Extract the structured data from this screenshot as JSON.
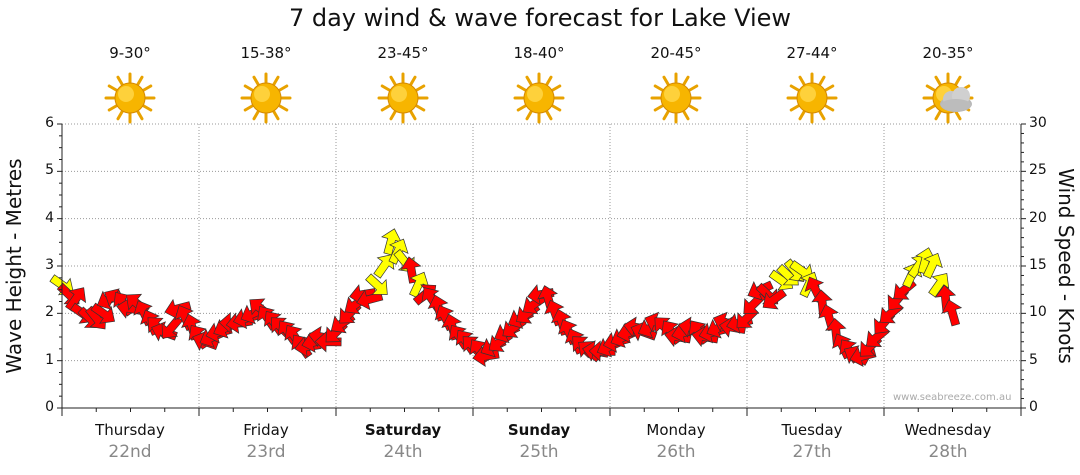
{
  "title": "7 day wind & wave forecast for Lake View",
  "credit": "www.seabreeze.com.au",
  "days": [
    {
      "name": "Thursday",
      "date": "22nd",
      "temp": "9-30°",
      "icon": "sun-icon",
      "bold": false
    },
    {
      "name": "Friday",
      "date": "23rd",
      "temp": "15-38°",
      "icon": "sun-icon",
      "bold": false
    },
    {
      "name": "Saturday",
      "date": "24th",
      "temp": "23-45°",
      "icon": "sun-icon",
      "bold": true
    },
    {
      "name": "Sunday",
      "date": "25th",
      "temp": "18-40°",
      "icon": "sun-icon",
      "bold": true
    },
    {
      "name": "Monday",
      "date": "26th",
      "temp": "20-45°",
      "icon": "sun-icon",
      "bold": false
    },
    {
      "name": "Tuesday",
      "date": "27th",
      "temp": "27-44°",
      "icon": "sun-icon",
      "bold": false
    },
    {
      "name": "Wednesday",
      "date": "28th",
      "temp": "20-35°",
      "icon": "partly-cloudy-icon",
      "bold": false
    }
  ],
  "colors": {
    "strong_wind": "#ff0000",
    "light_wind": "#ffff00",
    "outline": "#333333",
    "grid": "#999999",
    "axis": "#222222"
  },
  "chart_data": {
    "type": "line",
    "title": "7 day wind & wave forecast for Lake View",
    "x_unit": "day (0 = start of Thursday 22nd)",
    "xlim": [
      0,
      7
    ],
    "y_left": {
      "label": "Wave Height - Metres",
      "lim": [
        0,
        6
      ],
      "ticks": [
        "0",
        "1",
        "2",
        "3",
        "4",
        "5",
        "6"
      ]
    },
    "y_right": {
      "label": "Wind Speed - Knots",
      "lim": [
        0,
        30
      ],
      "ticks": [
        "0",
        "5",
        "10",
        "15",
        "20",
        "25",
        "30"
      ]
    },
    "grid": true,
    "series": [
      {
        "kind": "wind-arrows",
        "axis": "right",
        "points": [
          [
            0.0,
            13.0,
            8
          ],
          [
            0.05,
            12.0,
            8
          ],
          [
            0.1,
            11.5,
            6
          ],
          [
            0.15,
            10.0,
            8
          ],
          [
            0.2,
            9.5,
            8
          ],
          [
            0.25,
            9.5,
            8
          ],
          [
            0.3,
            10.0,
            8
          ],
          [
            0.35,
            11.5,
            10
          ],
          [
            0.4,
            11.5,
            10
          ],
          [
            0.45,
            11.0,
            10
          ],
          [
            0.5,
            10.5,
            10
          ],
          [
            0.55,
            11.0,
            10
          ],
          [
            0.6,
            10.0,
            10
          ],
          [
            0.65,
            9.0,
            10
          ],
          [
            0.7,
            8.5,
            10
          ],
          [
            0.75,
            8.0,
            10
          ],
          [
            0.8,
            8.5,
            12
          ],
          [
            0.85,
            10.5,
            12
          ],
          [
            0.9,
            9.5,
            12
          ],
          [
            0.95,
            8.5,
            10
          ],
          [
            1.0,
            7.5,
            10
          ],
          [
            1.05,
            7.0,
            10
          ],
          [
            1.1,
            7.5,
            10
          ],
          [
            1.15,
            8.0,
            10
          ],
          [
            1.2,
            8.5,
            10
          ],
          [
            1.25,
            9.0,
            10
          ],
          [
            1.3,
            9.0,
            10
          ],
          [
            1.35,
            9.5,
            10
          ],
          [
            1.4,
            10.0,
            10
          ],
          [
            1.45,
            10.5,
            10
          ],
          [
            1.5,
            9.5,
            10
          ],
          [
            1.55,
            9.0,
            10
          ],
          [
            1.6,
            8.5,
            10
          ],
          [
            1.65,
            8.0,
            10
          ],
          [
            1.7,
            7.5,
            10
          ],
          [
            1.75,
            6.5,
            10
          ],
          [
            1.8,
            6.5,
            10
          ],
          [
            1.85,
            7.0,
            10
          ],
          [
            1.9,
            7.5,
            10
          ],
          [
            1.95,
            7.0,
            10
          ],
          [
            2.0,
            8.0,
            10
          ],
          [
            2.05,
            9.0,
            10
          ],
          [
            2.1,
            10.0,
            10
          ],
          [
            2.15,
            11.0,
            10
          ],
          [
            2.2,
            12.0,
            10
          ],
          [
            2.25,
            11.5,
            10
          ],
          [
            2.3,
            13.0,
            8
          ],
          [
            2.35,
            15.0,
            6
          ],
          [
            2.4,
            17.5,
            6
          ],
          [
            2.45,
            16.5,
            6
          ],
          [
            2.5,
            15.5,
            8
          ],
          [
            2.55,
            14.5,
            10
          ],
          [
            2.6,
            13.0,
            6
          ],
          [
            2.65,
            12.0,
            4
          ],
          [
            2.7,
            11.5,
            10
          ],
          [
            2.75,
            10.5,
            10
          ],
          [
            2.8,
            9.5,
            10
          ],
          [
            2.85,
            8.5,
            10
          ],
          [
            2.9,
            7.5,
            10
          ],
          [
            2.95,
            7.0,
            10
          ],
          [
            3.0,
            6.5,
            10
          ],
          [
            3.05,
            6.0,
            10
          ],
          [
            3.1,
            5.5,
            10
          ],
          [
            3.15,
            6.5,
            10
          ],
          [
            3.2,
            7.0,
            10
          ],
          [
            3.25,
            8.0,
            10
          ],
          [
            3.3,
            8.5,
            10
          ],
          [
            3.35,
            9.5,
            10
          ],
          [
            3.4,
            10.0,
            10
          ],
          [
            3.45,
            11.0,
            10
          ],
          [
            3.5,
            12.0,
            10
          ],
          [
            3.55,
            11.5,
            10
          ],
          [
            3.6,
            10.0,
            10
          ],
          [
            3.65,
            9.0,
            10
          ],
          [
            3.7,
            8.0,
            10
          ],
          [
            3.75,
            7.0,
            10
          ],
          [
            3.8,
            6.5,
            10
          ],
          [
            3.85,
            6.0,
            10
          ],
          [
            3.9,
            6.0,
            10
          ],
          [
            3.95,
            6.0,
            10
          ],
          [
            4.0,
            6.5,
            10
          ],
          [
            4.05,
            7.0,
            10
          ],
          [
            4.1,
            7.5,
            10
          ],
          [
            4.15,
            8.0,
            10
          ],
          [
            4.2,
            8.5,
            10
          ],
          [
            4.25,
            8.0,
            10
          ],
          [
            4.3,
            8.5,
            10
          ],
          [
            4.35,
            9.0,
            10
          ],
          [
            4.4,
            8.5,
            10
          ],
          [
            4.45,
            8.0,
            10
          ],
          [
            4.5,
            7.5,
            10
          ],
          [
            4.55,
            8.0,
            10
          ],
          [
            4.6,
            8.5,
            10
          ],
          [
            4.65,
            8.0,
            10
          ],
          [
            4.7,
            7.5,
            10
          ],
          [
            4.75,
            8.0,
            10
          ],
          [
            4.8,
            8.5,
            10
          ],
          [
            4.85,
            9.0,
            10
          ],
          [
            4.9,
            8.5,
            10
          ],
          [
            4.95,
            9.0,
            10
          ],
          [
            5.0,
            9.5,
            10
          ],
          [
            5.05,
            11.0,
            10
          ],
          [
            5.1,
            12.5,
            10
          ],
          [
            5.15,
            12.0,
            8
          ],
          [
            5.2,
            11.5,
            10
          ],
          [
            5.25,
            13.5,
            8
          ],
          [
            5.3,
            14.0,
            8
          ],
          [
            5.35,
            14.5,
            8
          ],
          [
            5.4,
            14.5,
            8
          ],
          [
            5.45,
            13.0,
            6
          ],
          [
            5.5,
            12.5,
            10
          ],
          [
            5.55,
            11.0,
            10
          ],
          [
            5.6,
            9.5,
            10
          ],
          [
            5.65,
            8.0,
            10
          ],
          [
            5.7,
            6.5,
            10
          ],
          [
            5.75,
            6.0,
            10
          ],
          [
            5.8,
            5.5,
            10
          ],
          [
            5.85,
            5.5,
            10
          ],
          [
            5.9,
            6.5,
            10
          ],
          [
            5.95,
            7.5,
            10
          ],
          [
            6.0,
            9.0,
            10
          ],
          [
            6.05,
            10.0,
            10
          ],
          [
            6.1,
            11.5,
            10
          ],
          [
            6.15,
            12.5,
            10
          ],
          [
            6.2,
            14.0,
            6
          ],
          [
            6.25,
            15.0,
            6
          ],
          [
            6.3,
            15.5,
            6
          ],
          [
            6.35,
            15.0,
            6
          ],
          [
            6.4,
            13.0,
            6
          ],
          [
            6.45,
            11.5,
            10
          ],
          [
            6.5,
            10.0,
            10
          ]
        ]
      }
    ]
  }
}
